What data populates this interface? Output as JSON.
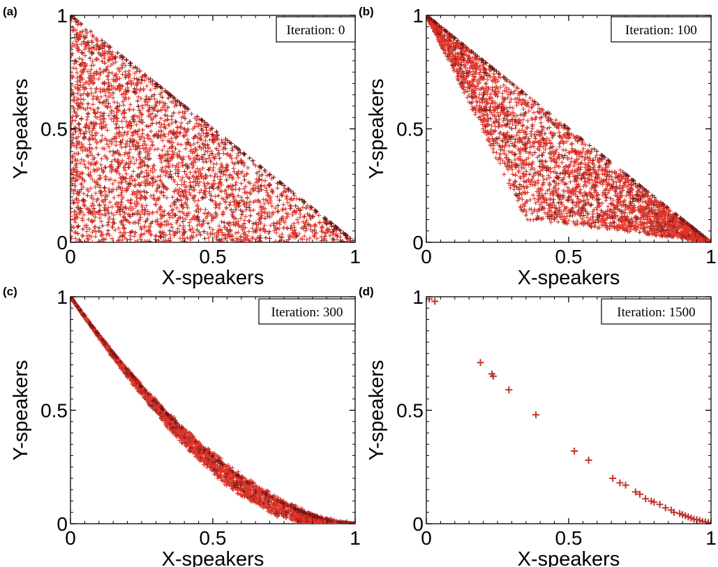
{
  "chart_data": [
    {
      "panel_label": "(a)",
      "type": "scatter",
      "annotation": "Iteration: 0",
      "xlabel": "X-speakers",
      "ylabel": "Y-speakers",
      "xlim": [
        0,
        1
      ],
      "ylim": [
        0,
        1
      ],
      "xticks": [
        "0",
        "0.5",
        "1"
      ],
      "yticks": [
        "0",
        "0.5",
        "1"
      ],
      "marker": "+",
      "color": "#e0352b",
      "distribution": "uniform over the triangle x >= 0, y >= 0, x + y <= 1",
      "points": [
        [
          0.02,
          0.97
        ],
        [
          0.05,
          0.9
        ],
        [
          0.1,
          0.85
        ],
        [
          0.03,
          0.6
        ],
        [
          0.2,
          0.7
        ],
        [
          0.3,
          0.6
        ],
        [
          0.15,
          0.4
        ],
        [
          0.4,
          0.5
        ],
        [
          0.5,
          0.45
        ],
        [
          0.25,
          0.2
        ],
        [
          0.6,
          0.35
        ],
        [
          0.7,
          0.25
        ],
        [
          0.45,
          0.1
        ],
        [
          0.8,
          0.15
        ],
        [
          0.9,
          0.08
        ],
        [
          0.1,
          0.05
        ],
        [
          0.35,
          0.3
        ],
        [
          0.55,
          0.2
        ],
        [
          0.97,
          0.02
        ],
        [
          0.65,
          0.05
        ]
      ]
    },
    {
      "panel_label": "(b)",
      "type": "scatter",
      "annotation": "Iteration: 100",
      "xlabel": "X-speakers",
      "ylabel": "Y-speakers",
      "xlim": [
        0,
        1
      ],
      "ylim": [
        0,
        1
      ],
      "xticks": [
        "0",
        "0.5",
        "1"
      ],
      "yticks": [
        "0",
        "0.5",
        "1"
      ],
      "marker": "+",
      "color": "#e0352b",
      "distribution": "band between the line from (0,1) to (0.35,0.1) / (1,0) and the line x + y = 1",
      "points": [
        [
          0.01,
          0.98
        ],
        [
          0.05,
          0.92
        ],
        [
          0.1,
          0.85
        ],
        [
          0.15,
          0.75
        ],
        [
          0.2,
          0.65
        ],
        [
          0.25,
          0.6
        ],
        [
          0.3,
          0.5
        ],
        [
          0.35,
          0.4
        ],
        [
          0.4,
          0.3
        ],
        [
          0.35,
          0.12
        ],
        [
          0.45,
          0.1
        ],
        [
          0.5,
          0.2
        ],
        [
          0.55,
          0.15
        ],
        [
          0.6,
          0.1
        ],
        [
          0.7,
          0.1
        ],
        [
          0.8,
          0.06
        ],
        [
          0.9,
          0.03
        ],
        [
          0.98,
          0.01
        ]
      ]
    },
    {
      "panel_label": "(c)",
      "type": "scatter",
      "annotation": "Iteration: 300",
      "xlabel": "X-speakers",
      "ylabel": "Y-speakers",
      "xlim": [
        0,
        1
      ],
      "ylim": [
        0,
        1
      ],
      "xticks": [
        "0",
        "0.5",
        "1"
      ],
      "yticks": [
        "0",
        "0.5",
        "1"
      ],
      "marker": "+",
      "color": "#e0352b",
      "distribution": "narrow curved band from (0,1) to (1,0), widest near x = 0.65",
      "points": [
        [
          0.01,
          0.99
        ],
        [
          0.05,
          0.92
        ],
        [
          0.1,
          0.83
        ],
        [
          0.15,
          0.74
        ],
        [
          0.2,
          0.66
        ],
        [
          0.25,
          0.58
        ],
        [
          0.3,
          0.5
        ],
        [
          0.35,
          0.44
        ],
        [
          0.4,
          0.38
        ],
        [
          0.45,
          0.32
        ],
        [
          0.5,
          0.27
        ],
        [
          0.55,
          0.22
        ],
        [
          0.6,
          0.18
        ],
        [
          0.65,
          0.14
        ],
        [
          0.7,
          0.1
        ],
        [
          0.75,
          0.08
        ],
        [
          0.8,
          0.05
        ],
        [
          0.85,
          0.04
        ],
        [
          0.9,
          0.02
        ],
        [
          0.97,
          0.01
        ]
      ]
    },
    {
      "panel_label": "(d)",
      "type": "scatter",
      "annotation": "Iteration: 1500",
      "xlabel": "X-speakers",
      "ylabel": "Y-speakers",
      "xlim": [
        0,
        1
      ],
      "ylim": [
        0,
        1
      ],
      "xticks": [
        "0",
        "0.5",
        "1"
      ],
      "yticks": [
        "0",
        "0.5",
        "1"
      ],
      "marker": "+",
      "color": "#c0342d",
      "points": [
        [
          0.01,
          0.99
        ],
        [
          0.03,
          0.98
        ],
        [
          0.19,
          0.71
        ],
        [
          0.23,
          0.66
        ],
        [
          0.235,
          0.65
        ],
        [
          0.29,
          0.59
        ],
        [
          0.385,
          0.48
        ],
        [
          0.52,
          0.32
        ],
        [
          0.57,
          0.28
        ],
        [
          0.655,
          0.2
        ],
        [
          0.68,
          0.18
        ],
        [
          0.7,
          0.17
        ],
        [
          0.735,
          0.14
        ],
        [
          0.75,
          0.13
        ],
        [
          0.77,
          0.11
        ],
        [
          0.79,
          0.1
        ],
        [
          0.8,
          0.095
        ],
        [
          0.82,
          0.085
        ],
        [
          0.84,
          0.07
        ],
        [
          0.86,
          0.06
        ],
        [
          0.87,
          0.05
        ],
        [
          0.89,
          0.045
        ],
        [
          0.9,
          0.04
        ],
        [
          0.91,
          0.035
        ],
        [
          0.92,
          0.03
        ],
        [
          0.93,
          0.025
        ],
        [
          0.94,
          0.02
        ],
        [
          0.95,
          0.018
        ],
        [
          0.96,
          0.015
        ],
        [
          0.97,
          0.01
        ],
        [
          0.98,
          0.008
        ],
        [
          0.99,
          0.005
        ],
        [
          1.0,
          0.002
        ]
      ]
    }
  ]
}
